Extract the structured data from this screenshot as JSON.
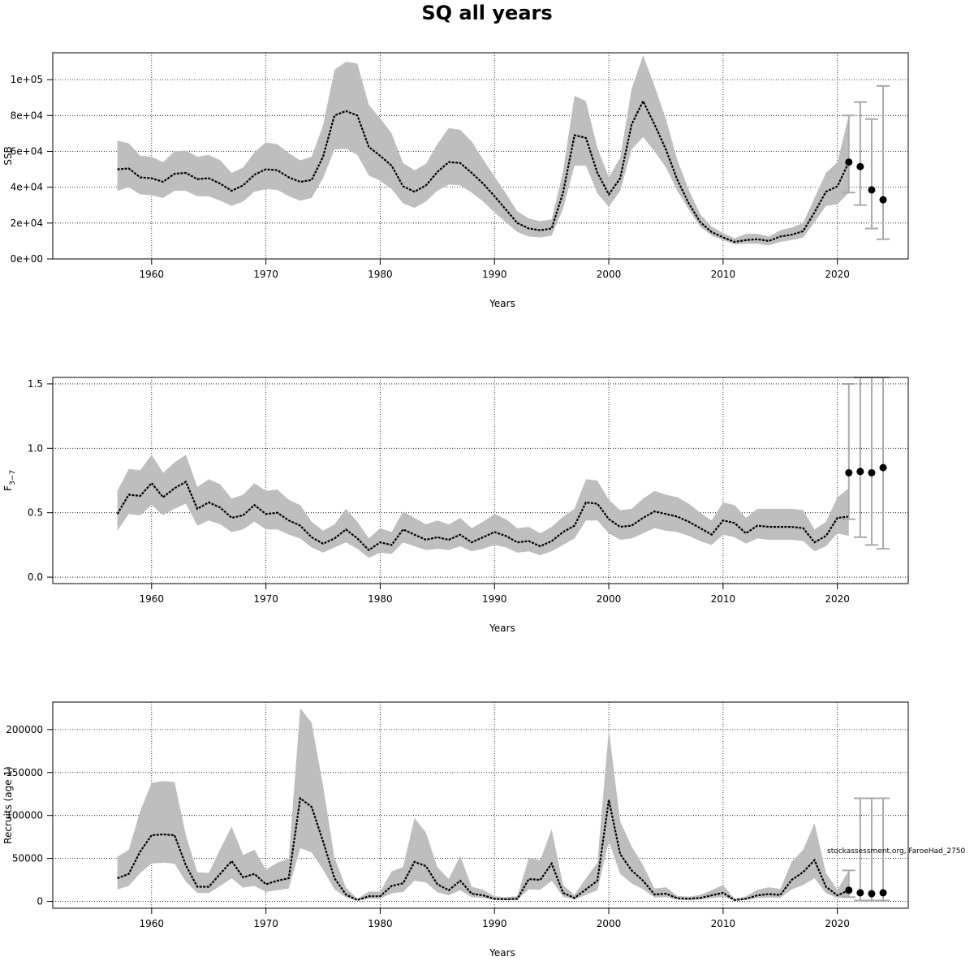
{
  "title": "SQ all years",
  "watermark": "stockassessment.org, FaroeHad_2750",
  "colors": {
    "band": "#bebebe",
    "line": "#000000",
    "errorbar": "#aaaaaa",
    "grid": "#000000"
  },
  "chart_data": [
    {
      "type": "line",
      "xlabel": "Years",
      "ylabel": "SSB",
      "xlim": [
        1957,
        2024
      ],
      "ylim": [
        0,
        115000
      ],
      "x_ticks": [
        1960,
        1970,
        1980,
        1990,
        2000,
        2010,
        2020
      ],
      "x_tick_labels": [
        "1960",
        "1970",
        "1980",
        "1990",
        "2000",
        "2010",
        "2020"
      ],
      "y_ticks": [
        0,
        20000,
        40000,
        60000,
        80000,
        100000
      ],
      "y_tick_labels": [
        "0e+00",
        "2e+04",
        "4e+04",
        "6e+04",
        "8e+04",
        "1e+05"
      ],
      "grid": true,
      "x": [
        1957,
        1958,
        1959,
        1960,
        1961,
        1962,
        1963,
        1964,
        1965,
        1966,
        1967,
        1968,
        1969,
        1970,
        1971,
        1972,
        1973,
        1974,
        1975,
        1976,
        1977,
        1978,
        1979,
        1980,
        1981,
        1982,
        1983,
        1984,
        1985,
        1986,
        1987,
        1988,
        1989,
        1990,
        1991,
        1992,
        1993,
        1994,
        1995,
        1996,
        1997,
        1998,
        1999,
        2000,
        2001,
        2002,
        2003,
        2004,
        2005,
        2006,
        2007,
        2008,
        2009,
        2010,
        2011,
        2012,
        2013,
        2014,
        2015,
        2016,
        2017,
        2018,
        2019,
        2020,
        2021
      ],
      "estimate": [
        50000,
        50500,
        45500,
        45000,
        43000,
        47500,
        48000,
        44500,
        45000,
        42000,
        38000,
        41000,
        47000,
        50000,
        49500,
        45500,
        43000,
        44000,
        57000,
        80000,
        82500,
        80000,
        62500,
        57500,
        52000,
        40500,
        37500,
        41000,
        48500,
        54000,
        53500,
        48000,
        42000,
        35000,
        27500,
        20000,
        17000,
        16000,
        17000,
        37000,
        69000,
        67500,
        48000,
        36000,
        45000,
        75000,
        88000,
        75000,
        61000,
        44000,
        31000,
        20500,
        15000,
        12000,
        9500,
        10500,
        11000,
        10000,
        12500,
        13500,
        15500,
        26000,
        37500,
        40500,
        54000
      ],
      "lower": [
        38000,
        40000,
        36000,
        35500,
        34000,
        38000,
        38000,
        35000,
        35000,
        32500,
        29500,
        32000,
        37500,
        39000,
        38500,
        35000,
        32500,
        34000,
        45000,
        61000,
        61500,
        58000,
        46500,
        43500,
        39000,
        31000,
        28500,
        32000,
        38000,
        41500,
        41000,
        37000,
        32000,
        26000,
        20500,
        15000,
        12500,
        12000,
        13000,
        28000,
        52000,
        52000,
        36500,
        29000,
        38000,
        61000,
        68000,
        60000,
        51000,
        38000,
        27500,
        18000,
        13000,
        10500,
        8000,
        8500,
        8500,
        7500,
        9500,
        10500,
        12000,
        20500,
        29500,
        30500,
        37000
      ],
      "upper": [
        66000,
        64500,
        57500,
        57000,
        54000,
        60000,
        60500,
        57000,
        58000,
        55000,
        48000,
        51000,
        59500,
        65000,
        64000,
        59000,
        55000,
        57000,
        74500,
        105500,
        110000,
        109000,
        86000,
        78500,
        70000,
        53500,
        49500,
        53000,
        64000,
        73000,
        72000,
        65500,
        55500,
        46000,
        36500,
        26500,
        22500,
        21000,
        22000,
        49000,
        91000,
        88000,
        62000,
        45500,
        56500,
        95000,
        113500,
        96500,
        78000,
        55000,
        38500,
        25000,
        18000,
        14500,
        11500,
        14000,
        14000,
        12500,
        16000,
        17500,
        20000,
        34000,
        48000,
        54000,
        80000
      ],
      "forecast": [
        {
          "x": 2021,
          "y": 54000,
          "lo": 37000,
          "hi": 80000
        },
        {
          "x": 2022,
          "y": 51500,
          "lo": 30000,
          "hi": 87500
        },
        {
          "x": 2023,
          "y": 38500,
          "lo": 17000,
          "hi": 78000
        },
        {
          "x": 2024,
          "y": 33000,
          "lo": 11000,
          "hi": 96500
        }
      ]
    },
    {
      "type": "line",
      "xlabel": "Years",
      "ylabel": "F3-7",
      "ylabel_main": "F",
      "ylabel_sub": "3−7",
      "xlim": [
        1957,
        2024
      ],
      "ylim": [
        -0.05,
        1.55
      ],
      "x_ticks": [
        1960,
        1970,
        1980,
        1990,
        2000,
        2010,
        2020
      ],
      "x_tick_labels": [
        "1960",
        "1970",
        "1980",
        "1990",
        "2000",
        "2010",
        "2020"
      ],
      "y_ticks": [
        0,
        0.5,
        1.0,
        1.5
      ],
      "y_tick_labels": [
        "0.0",
        "0.5",
        "1.0",
        "1.5"
      ],
      "grid": true,
      "x": [
        1957,
        1958,
        1959,
        1960,
        1961,
        1962,
        1963,
        1964,
        1965,
        1966,
        1967,
        1968,
        1969,
        1970,
        1971,
        1972,
        1973,
        1974,
        1975,
        1976,
        1977,
        1978,
        1979,
        1980,
        1981,
        1982,
        1983,
        1984,
        1985,
        1986,
        1987,
        1988,
        1989,
        1990,
        1991,
        1992,
        1993,
        1994,
        1995,
        1996,
        1997,
        1998,
        1999,
        2000,
        2001,
        2002,
        2003,
        2004,
        2005,
        2006,
        2007,
        2008,
        2009,
        2010,
        2011,
        2012,
        2013,
        2014,
        2015,
        2016,
        2017,
        2018,
        2019,
        2020,
        2021
      ],
      "estimate": [
        0.49,
        0.64,
        0.63,
        0.73,
        0.62,
        0.69,
        0.74,
        0.53,
        0.58,
        0.54,
        0.46,
        0.48,
        0.56,
        0.49,
        0.5,
        0.44,
        0.4,
        0.31,
        0.26,
        0.3,
        0.37,
        0.3,
        0.21,
        0.27,
        0.25,
        0.37,
        0.33,
        0.29,
        0.31,
        0.29,
        0.33,
        0.27,
        0.31,
        0.35,
        0.32,
        0.27,
        0.28,
        0.24,
        0.28,
        0.35,
        0.4,
        0.58,
        0.57,
        0.45,
        0.39,
        0.4,
        0.46,
        0.51,
        0.49,
        0.47,
        0.43,
        0.38,
        0.33,
        0.44,
        0.42,
        0.34,
        0.4,
        0.39,
        0.39,
        0.39,
        0.38,
        0.27,
        0.32,
        0.46,
        0.47
      ],
      "lower": [
        0.36,
        0.49,
        0.48,
        0.56,
        0.48,
        0.53,
        0.57,
        0.4,
        0.44,
        0.41,
        0.35,
        0.37,
        0.43,
        0.37,
        0.37,
        0.33,
        0.3,
        0.23,
        0.19,
        0.23,
        0.27,
        0.22,
        0.15,
        0.19,
        0.18,
        0.27,
        0.24,
        0.21,
        0.22,
        0.21,
        0.24,
        0.2,
        0.22,
        0.25,
        0.23,
        0.19,
        0.2,
        0.17,
        0.2,
        0.25,
        0.3,
        0.44,
        0.44,
        0.34,
        0.29,
        0.3,
        0.34,
        0.38,
        0.36,
        0.35,
        0.32,
        0.28,
        0.25,
        0.33,
        0.31,
        0.26,
        0.3,
        0.29,
        0.29,
        0.29,
        0.28,
        0.2,
        0.24,
        0.34,
        0.32
      ],
      "upper": [
        0.67,
        0.84,
        0.83,
        0.95,
        0.81,
        0.89,
        0.95,
        0.7,
        0.76,
        0.72,
        0.61,
        0.64,
        0.73,
        0.67,
        0.68,
        0.6,
        0.56,
        0.43,
        0.36,
        0.41,
        0.53,
        0.43,
        0.3,
        0.38,
        0.35,
        0.51,
        0.46,
        0.41,
        0.44,
        0.41,
        0.46,
        0.38,
        0.43,
        0.49,
        0.45,
        0.38,
        0.39,
        0.34,
        0.39,
        0.47,
        0.53,
        0.76,
        0.75,
        0.6,
        0.52,
        0.53,
        0.61,
        0.67,
        0.64,
        0.62,
        0.57,
        0.5,
        0.44,
        0.58,
        0.56,
        0.46,
        0.53,
        0.53,
        0.53,
        0.53,
        0.52,
        0.37,
        0.43,
        0.62,
        0.69
      ],
      "forecast": [
        {
          "x": 2021,
          "y": 0.81,
          "lo": 0.45,
          "hi": 1.5
        },
        {
          "x": 2022,
          "y": 0.82,
          "lo": 0.31,
          "hi": 1.55
        },
        {
          "x": 2023,
          "y": 0.81,
          "lo": 0.25,
          "hi": 1.55
        },
        {
          "x": 2024,
          "y": 0.85,
          "lo": 0.22,
          "hi": 1.55
        }
      ]
    },
    {
      "type": "line",
      "xlabel": "Years",
      "ylabel": "Recruits (age 1)",
      "xlim": [
        1957,
        2024
      ],
      "ylim": [
        -8000,
        232000
      ],
      "x_ticks": [
        1960,
        1970,
        1980,
        1990,
        2000,
        2010,
        2020
      ],
      "x_tick_labels": [
        "1960",
        "1970",
        "1980",
        "1990",
        "2000",
        "2010",
        "2020"
      ],
      "y_ticks": [
        0,
        50000,
        100000,
        150000,
        200000
      ],
      "y_tick_labels": [
        "0",
        "50000",
        "100000",
        "150000",
        "200000"
      ],
      "grid": true,
      "x": [
        1957,
        1958,
        1959,
        1960,
        1961,
        1962,
        1963,
        1964,
        1965,
        1966,
        1967,
        1968,
        1969,
        1970,
        1971,
        1972,
        1973,
        1974,
        1975,
        1976,
        1977,
        1978,
        1979,
        1980,
        1981,
        1982,
        1983,
        1984,
        1985,
        1986,
        1987,
        1988,
        1989,
        1990,
        1991,
        1992,
        1993,
        1994,
        1995,
        1996,
        1997,
        1998,
        1999,
        2000,
        2001,
        2002,
        2003,
        2004,
        2005,
        2006,
        2007,
        2008,
        2009,
        2010,
        2011,
        2012,
        2013,
        2014,
        2015,
        2016,
        2017,
        2018,
        2019,
        2020,
        2021
      ],
      "estimate": [
        27000,
        32000,
        58000,
        77000,
        78000,
        77000,
        42000,
        17000,
        17000,
        32000,
        47000,
        28000,
        32000,
        20000,
        24000,
        27000,
        120000,
        110000,
        70000,
        27000,
        8000,
        1500,
        6000,
        6000,
        18000,
        21000,
        46000,
        41000,
        20000,
        13000,
        24000,
        9000,
        7000,
        3000,
        2500,
        3000,
        26000,
        25000,
        44000,
        10000,
        4000,
        14000,
        24000,
        118000,
        55000,
        36000,
        24000,
        8000,
        9000,
        3500,
        3000,
        4000,
        7000,
        10000,
        1500,
        3000,
        7000,
        8500,
        7500,
        25000,
        34000,
        48000,
        17000,
        7000,
        13000
      ],
      "lower": [
        14000,
        18000,
        33000,
        44000,
        45000,
        44000,
        23000,
        10000,
        9500,
        18000,
        27000,
        16000,
        18000,
        11000,
        13000,
        15000,
        62000,
        57000,
        37000,
        14000,
        4500,
        700,
        3000,
        3200,
        9500,
        11000,
        24000,
        22000,
        10500,
        7000,
        13000,
        5000,
        3800,
        1600,
        1300,
        1600,
        14000,
        13500,
        24000,
        5500,
        2000,
        7600,
        13000,
        70000,
        32000,
        21000,
        14000,
        4500,
        5000,
        2000,
        1700,
        2200,
        3800,
        5500,
        800,
        1600,
        3800,
        4600,
        4000,
        14000,
        19000,
        27000,
        9500,
        3800,
        5000
      ],
      "upper": [
        52000,
        60000,
        105000,
        138000,
        140000,
        139000,
        77000,
        34000,
        33000,
        61000,
        87000,
        54000,
        60000,
        37000,
        45000,
        50000,
        225000,
        208000,
        135000,
        51000,
        16000,
        3000,
        11500,
        11500,
        35000,
        40000,
        97000,
        80000,
        40000,
        26000,
        53000,
        17000,
        13500,
        6000,
        5000,
        6000,
        51000,
        48000,
        84000,
        19000,
        7500,
        27000,
        45000,
        200000,
        93000,
        64000,
        42000,
        15000,
        16500,
        6500,
        5500,
        7500,
        13000,
        19000,
        3000,
        5800,
        13500,
        16500,
        14500,
        46000,
        60000,
        91000,
        33000,
        13500,
        36000
      ],
      "forecast": [
        {
          "x": 2021,
          "y": 13000,
          "lo": 5000,
          "hi": 36000
        },
        {
          "x": 2022,
          "y": 10000,
          "lo": 1000,
          "hi": 120000
        },
        {
          "x": 2023,
          "y": 9000,
          "lo": 1000,
          "hi": 120000
        },
        {
          "x": 2024,
          "y": 10000,
          "lo": 1000,
          "hi": 120000
        }
      ]
    }
  ]
}
